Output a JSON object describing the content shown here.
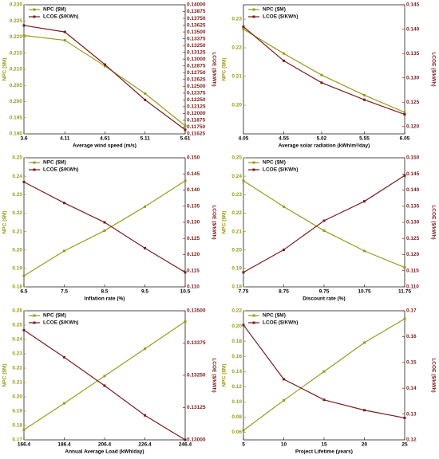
{
  "chart_data": [
    {
      "type": "line",
      "xlabel": "Average wind speed (m/s)",
      "ylabel": "NPC ($M)",
      "y2label": "LCOE ($/kWh)",
      "legend": "upper left",
      "x": [
        3.6,
        4.11,
        4.61,
        5.11,
        5.61
      ],
      "xticks": [
        3.6,
        4.11,
        4.61,
        5.11,
        5.61
      ],
      "xlim": [
        3.6,
        5.61
      ],
      "ylim": [
        0.19,
        0.23
      ],
      "yticks": [
        {
          "value": 0.19,
          "label": "0.190"
        },
        0.195,
        {
          "value": 0.2,
          "label": "0.200"
        },
        0.205,
        {
          "value": 0.21,
          "label": "0.210"
        },
        0.215,
        {
          "value": 0.22,
          "label": "0.220"
        },
        0.225,
        {
          "value": 0.23,
          "label": "0.230"
        }
      ],
      "y2lim": [
        0.11625,
        0.14
      ],
      "y2ticks": [
        0.11625,
        {
          "value": 0.1175,
          "label": "0.11750"
        },
        0.11875,
        {
          "value": 0.12,
          "label": "0.12000"
        },
        0.12125,
        {
          "value": 0.1225,
          "label": "0.12250"
        },
        0.12375,
        {
          "value": 0.125,
          "label": "0.12500"
        },
        0.12625,
        {
          "value": 0.1275,
          "label": "0.12750"
        },
        0.12875,
        {
          "value": 0.13,
          "label": "0.13000"
        },
        0.13125,
        {
          "value": 0.1325,
          "label": "0.13250"
        },
        0.13375,
        {
          "value": 0.135,
          "label": "0.13500"
        },
        0.13625,
        {
          "value": 0.1375,
          "label": "0.13750"
        },
        0.13875,
        {
          "value": 0.14,
          "label": "0.14000"
        }
      ],
      "series": [
        {
          "name": "NPC ($M)",
          "color": "#9a9a1c",
          "values": [
            0.2205,
            0.219,
            0.211,
            0.2025,
            0.1925
          ]
        },
        {
          "name": "LCOE ($/KWh)",
          "color": "#7a1c1c",
          "axis": "y2",
          "values": [
            0.1362,
            0.135,
            0.129,
            0.1225,
            0.117
          ]
        }
      ]
    },
    {
      "type": "line",
      "xlabel": "Average solar radiation (kWh/m²/day)",
      "ylabel": "NPC ($M)",
      "y2label": "LCOE ($/kWh)",
      "legend": "upper left",
      "x": [
        4.05,
        4.55,
        5.02,
        5.55,
        6.05
      ],
      "xticks": [
        4.05,
        4.55,
        5.02,
        5.55,
        6.05
      ],
      "xlim": [
        4.05,
        6.05
      ],
      "ylim": [
        0.19,
        0.235
      ],
      "yticks": [
        {
          "value": 0.2,
          "label": "0.20"
        },
        0.21,
        0.22,
        0.23
      ],
      "y2lim": [
        0.1185,
        0.145
      ],
      "y2ticks": [
        {
          "value": 0.12,
          "label": "0.120"
        },
        0.125,
        {
          "value": 0.13,
          "label": "0.130"
        },
        0.135,
        {
          "value": 0.14,
          "label": "0.140"
        },
        0.145
      ],
      "series": [
        {
          "name": "NPC ($M)",
          "color": "#9a9a1c",
          "values": [
            0.2265,
            0.218,
            0.2105,
            0.2035,
            0.1975
          ]
        },
        {
          "name": "LCOE ($/KWh)",
          "color": "#7a1c1c",
          "axis": "y2",
          "values": [
            0.1405,
            0.1335,
            0.129,
            0.1255,
            0.1225
          ]
        }
      ]
    },
    {
      "type": "line",
      "xlabel": "Inflation rate (%)",
      "ylabel": "NPC ($M)",
      "y2label": "LCOE ($/kWh)",
      "legend": "upper left",
      "x": [
        6.5,
        7.5,
        8.5,
        9.5,
        10.5
      ],
      "xticks": [
        6.5,
        7.5,
        8.5,
        9.5,
        10.5
      ],
      "xlim": [
        6.5,
        10.5
      ],
      "ylim": [
        0.18,
        0.25
      ],
      "yticks": [
        0.18,
        0.19,
        {
          "value": 0.2,
          "label": "0.20"
        },
        0.21,
        0.22,
        0.23,
        0.24,
        0.25
      ],
      "y2lim": [
        0.11,
        0.15
      ],
      "y2ticks": [
        {
          "value": 0.11,
          "label": "0.110"
        },
        0.115,
        {
          "value": 0.12,
          "label": "0.120"
        },
        0.125,
        {
          "value": 0.13,
          "label": "0.130"
        },
        0.135,
        {
          "value": 0.14,
          "label": "0.140"
        },
        0.145,
        {
          "value": 0.15,
          "label": "0.150"
        }
      ],
      "series": [
        {
          "name": "NPC ($M)",
          "color": "#9a9a1c",
          "values": [
            0.186,
            0.1995,
            0.2105,
            0.2235,
            0.2375
          ]
        },
        {
          "name": "LCOE ($/KWh)",
          "color": "#7a1c1c",
          "axis": "y2",
          "values": [
            0.1425,
            0.136,
            0.13,
            0.122,
            0.1145
          ]
        }
      ]
    },
    {
      "type": "line",
      "xlabel": "Discount rate (%)",
      "ylabel": "NPC ($M)",
      "y2label": "LCOE ($/kWh)",
      "legend": "upper left",
      "x": [
        7.75,
        8.75,
        9.75,
        10.75,
        11.75
      ],
      "xticks": [
        7.75,
        8.75,
        9.75,
        10.75,
        11.75
      ],
      "xlim": [
        7.75,
        11.75
      ],
      "ylim": [
        0.18,
        0.25
      ],
      "yticks": [
        0.18,
        0.19,
        {
          "value": 0.2,
          "label": "0.20"
        },
        0.21,
        0.22,
        0.23,
        0.24,
        0.25
      ],
      "y2lim": [
        0.11,
        0.15
      ],
      "y2ticks": [
        {
          "value": 0.11,
          "label": "0.110"
        },
        0.115,
        {
          "value": 0.12,
          "label": "0.120"
        },
        0.125,
        {
          "value": 0.13,
          "label": "0.130"
        },
        0.135,
        {
          "value": 0.14,
          "label": "0.140"
        },
        0.145,
        {
          "value": 0.15,
          "label": "0.150"
        }
      ],
      "series": [
        {
          "name": "NPC ($M)",
          "color": "#9a9a1c",
          "values": [
            0.2375,
            0.2235,
            0.2105,
            0.1995,
            0.1905
          ]
        },
        {
          "name": "LCOE ($/KWh)",
          "color": "#7a1c1c",
          "axis": "y2",
          "values": [
            0.1145,
            0.1215,
            0.1305,
            0.1365,
            0.1445
          ]
        }
      ]
    },
    {
      "type": "line",
      "xlabel": "Annual Average Load (kWh/day)",
      "ylabel": "NPC ($M)",
      "y2label": "LCOE ($/kWh)",
      "legend": "upper left",
      "x": [
        166.4,
        186.4,
        206.4,
        226.4,
        246.4
      ],
      "xticks": [
        166.4,
        186.4,
        206.4,
        226.4,
        246.4
      ],
      "xlim": [
        166.4,
        246.4
      ],
      "ylim": [
        0.17,
        0.26
      ],
      "yticks": [
        0.17,
        0.18,
        0.19,
        {
          "value": 0.2,
          "label": "0.20"
        },
        0.21,
        0.22,
        0.23,
        0.24,
        0.25,
        0.26
      ],
      "y2lim": [
        0.13,
        0.135
      ],
      "y2ticks": [
        {
          "value": 0.13,
          "label": "0.13000"
        },
        0.13125,
        {
          "value": 0.1325,
          "label": "0.13250"
        },
        0.13375,
        {
          "value": 0.135,
          "label": "0.13500"
        }
      ],
      "series": [
        {
          "name": "NPC ($M)",
          "color": "#9a9a1c",
          "values": [
            0.177,
            0.1955,
            0.2145,
            0.2335,
            0.2525
          ]
        },
        {
          "name": "LCOE ($/KWh)",
          "color": "#7a1c1c",
          "axis": "y2",
          "values": [
            0.13425,
            0.1332,
            0.1321,
            0.13095,
            0.13
          ]
        }
      ]
    },
    {
      "type": "line",
      "xlabel": "Project Lifetime (years)",
      "ylabel": "NPC ($M)",
      "y2label": "LCOE ($/kWh)",
      "legend": "upper left",
      "x": [
        5,
        10,
        15,
        20,
        25
      ],
      "xticks": [
        5,
        10,
        15,
        20,
        25
      ],
      "xlim": [
        5,
        25
      ],
      "ylim": [
        0.05,
        0.22
      ],
      "yticks": [
        0.06,
        0.08,
        {
          "value": 0.1,
          "label": "0.10"
        },
        0.12,
        0.14,
        0.16,
        0.18,
        {
          "value": 0.2,
          "label": "0.20"
        },
        0.22
      ],
      "y2lim": [
        0.12,
        0.17
      ],
      "y2ticks": [
        0.12,
        0.13,
        0.14,
        0.15,
        0.16,
        0.17
      ],
      "series": [
        {
          "name": "NPC ($M)",
          "color": "#9a9a1c",
          "values": [
            0.0625,
            0.102,
            0.14,
            0.178,
            0.2095
          ]
        },
        {
          "name": "LCOE ($/KWh)",
          "color": "#7a1c1c",
          "axis": "y2",
          "values": [
            0.1645,
            0.1435,
            0.1355,
            0.1315,
            0.1285
          ]
        }
      ]
    }
  ]
}
